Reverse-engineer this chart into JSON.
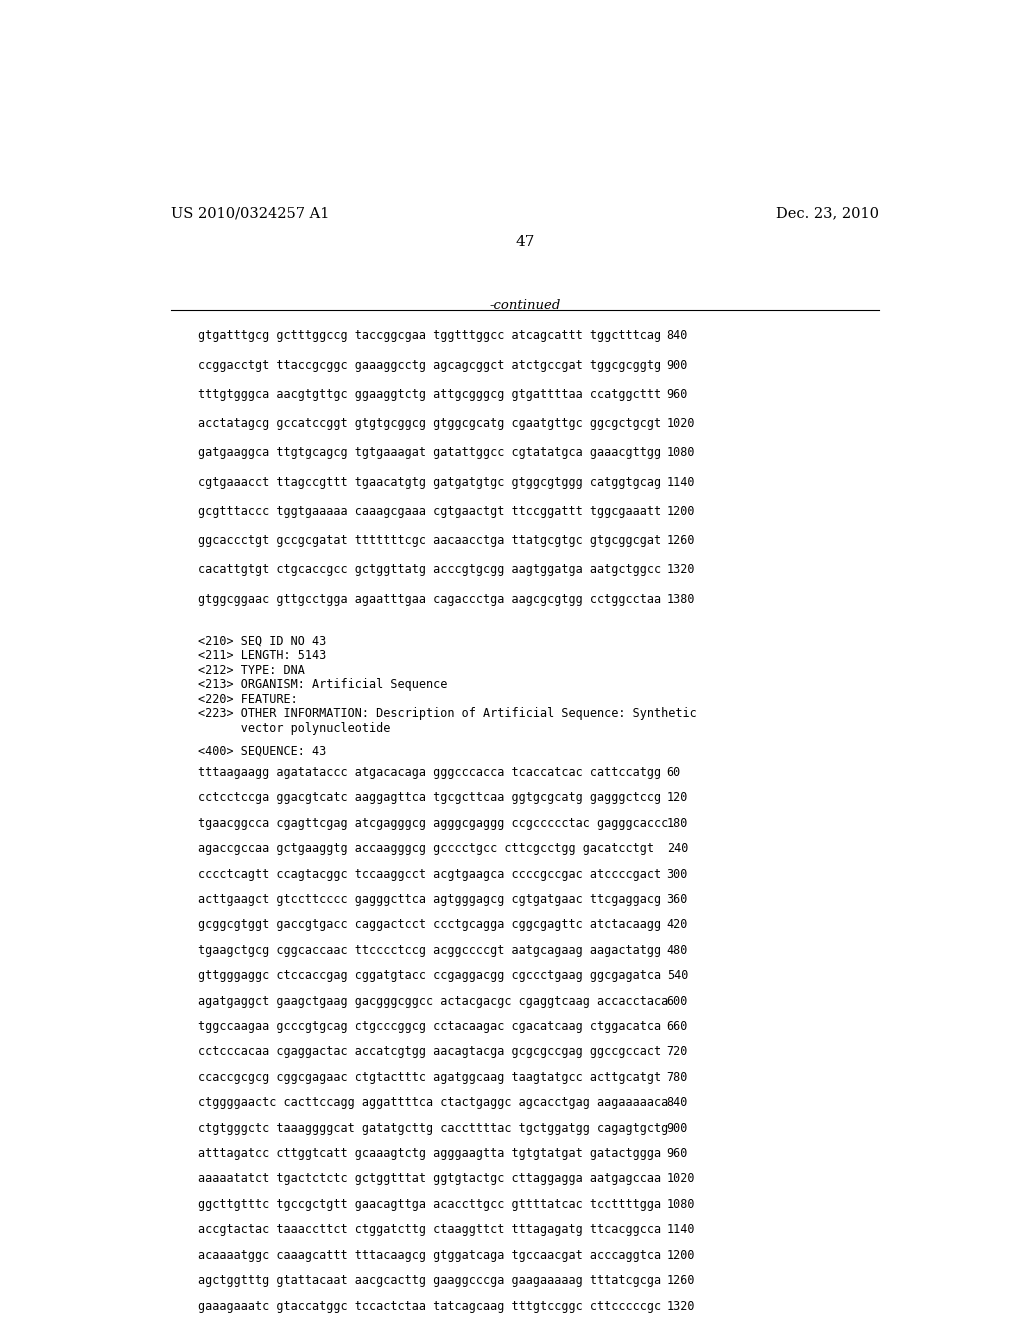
{
  "header_left": "US 2010/0324257 A1",
  "header_right": "Dec. 23, 2010",
  "page_number": "47",
  "continued_label": "-continued",
  "background_color": "#ffffff",
  "text_color": "#000000",
  "font_size_header": 10.5,
  "font_size_body": 8.5,
  "font_size_page": 11,
  "sequence_lines_top": [
    [
      "gtgatttgcg gctttggccg taccggcgaa tggtttggcc atcagcattt tggctttcag",
      "840"
    ],
    [
      "ccggacctgt ttaccgcggc gaaaggcctg agcagcggct atctgccgat tggcgcggtg",
      "900"
    ],
    [
      "tttgtgggca aacgtgttgc ggaaggtctg attgcgggcg gtgattttaa ccatggcttt",
      "960"
    ],
    [
      "acctatagcg gccatccggt gtgtgcggcg gtggcgcatg cgaatgttgc ggcgctgcgt",
      "1020"
    ],
    [
      "gatgaaggca ttgtgcagcg tgtgaaagat gatattggcc cgtatatgca gaaacgttgg",
      "1080"
    ],
    [
      "cgtgaaacct ttagccgttt tgaacatgtg gatgatgtgc gtggcgtggg catggtgcag",
      "1140"
    ],
    [
      "gcgtttaccc tggtgaaaaa caaagcgaaa cgtgaactgt ttccggattt tggcgaaatt",
      "1200"
    ],
    [
      "ggcaccctgt gccgcgatat tttttttcgc aacaacctga ttatgcgtgc gtgcggcgat",
      "1260"
    ],
    [
      "cacattgtgt ctgcaccgcc gctggttatg acccgtgcgg aagtggatga aatgctggcc",
      "1320"
    ],
    [
      "gtggcggaac gttgcctgga agaatttgaa cagaccctga aagcgcgtgg cctggcctaa",
      "1380"
    ]
  ],
  "seq_id_block": [
    "<210> SEQ ID NO 43",
    "<211> LENGTH: 5143",
    "<212> TYPE: DNA",
    "<213> ORGANISM: Artificial Sequence",
    "<220> FEATURE:",
    "<223> OTHER INFORMATION: Description of Artificial Sequence: Synthetic",
    "      vector polynucleotide"
  ],
  "seq_400_label": "<400> SEQUENCE: 43",
  "sequence_lines_bottom": [
    [
      "tttaagaagg agatataccc atgacacaga gggcccacca tcaccatcac cattccatgg",
      "60"
    ],
    [
      "cctcctccga ggacgtcatc aaggagttca tgcgcttcaa ggtgcgcatg gagggctccg",
      "120"
    ],
    [
      "tgaacggcca cgagttcgag atcgagggcg agggcgaggg ccgccccctac gagggcaccc",
      "180"
    ],
    [
      "agaccgccaa gctgaaggtg accaagggcg gcccctgcc cttcgcctgg gacatcctgt",
      "240"
    ],
    [
      "cccctcagtt ccagtacggc tccaaggcct acgtgaagca ccccgccgac atccccgact",
      "300"
    ],
    [
      "acttgaagct gtccttcccc gagggcttca agtgggagcg cgtgatgaac ttcgaggacg",
      "360"
    ],
    [
      "gcggcgtggt gaccgtgacc caggactcct ccctgcagga cggcgagttc atctacaagg",
      "420"
    ],
    [
      "tgaagctgcg cggcaccaac ttcccctccg acggccccgt aatgcagaag aagactatgg",
      "480"
    ],
    [
      "gttgggaggc ctccaccgag cggatgtacc ccgaggacgg cgccctgaag ggcgagatca",
      "540"
    ],
    [
      "agatgaggct gaagctgaag gacgggcggcc actacgacgc cgaggtcaag accacctaca",
      "600"
    ],
    [
      "tggccaagaa gcccgtgcag ctgcccggcg cctacaagac cgacatcaag ctggacatca",
      "660"
    ],
    [
      "cctcccacaa cgaggactac accatcgtgg aacagtacga gcgcgccgag ggccgccact",
      "720"
    ],
    [
      "ccaccgcgcg cggcgagaac ctgtactttc agatggcaag taagtatgcc acttgcatgt",
      "780"
    ],
    [
      "ctggggaactc cacttccagg aggattttca ctactgaggc agcacctgag aagaaaaaca",
      "840"
    ],
    [
      "ctgtgggctc taaaggggcat gatatgcttg caccttttac tgctggatgg cagagtgctg",
      "900"
    ],
    [
      "atttagatcc cttggtcatt gcaaagtctg agggaagtta tgtgtatgat gatactggga",
      "960"
    ],
    [
      "aaaaatatct tgactctctc gctggtttat ggtgtactgc cttaggagga aatgagccaa",
      "1020"
    ],
    [
      "ggcttgtttc tgccgctgtt gaacagttga acaccttgcc gttttatcac tccttttgga",
      "1080"
    ],
    [
      "accgtactac taaaccttct ctggatcttg ctaaggttct tttagagatg ttcacggcca",
      "1140"
    ],
    [
      "acaaaatggc caaagcattt tttacaagcg gtggatcaga tgccaacgat acccaggtca",
      "1200"
    ],
    [
      "agctggtttg gtattacaat aacgcacttg gaaggcccga gaagaaaaag tttatcgcga",
      "1260"
    ],
    [
      "gaaagaaatc gtaccatggc tccactctaa tatcagcaag tttgtccggc cttcccccgc",
      "1320"
    ]
  ]
}
